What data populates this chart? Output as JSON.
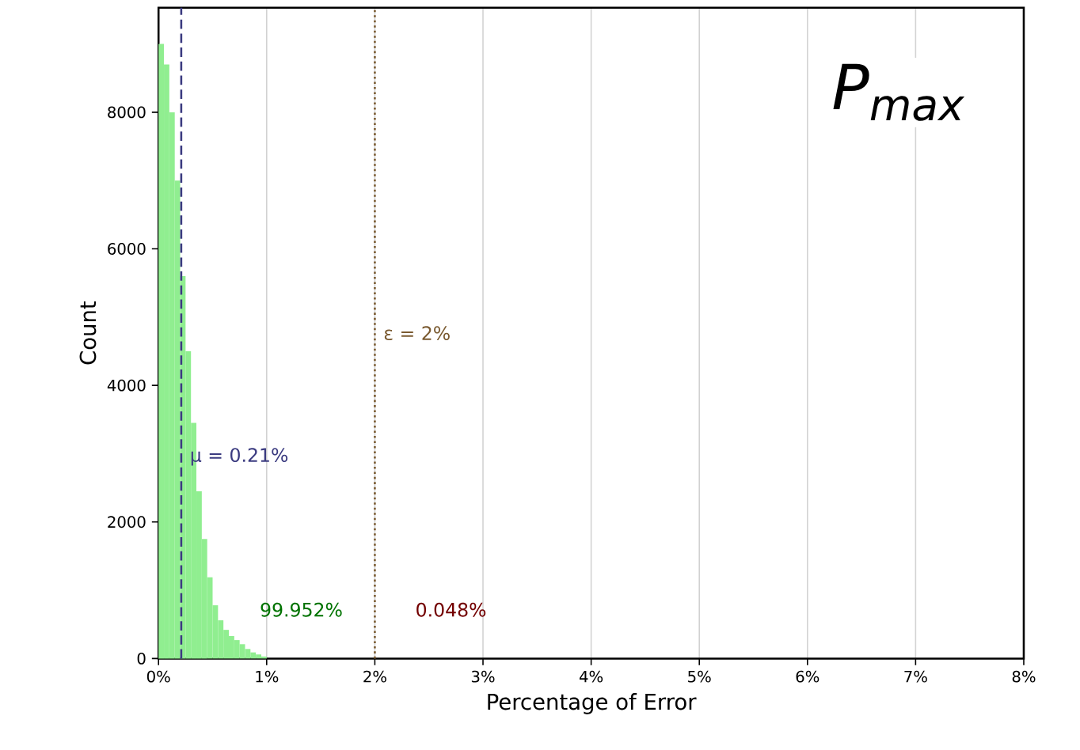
{
  "chart_data": {
    "type": "histogram",
    "title": "*P*$_{max}$",
    "xlabel": "Percentage of Error",
    "ylabel": "Count",
    "bins": [
      0,
      0.05,
      0.1,
      0.15,
      0.2,
      0.25,
      0.3,
      0.35,
      0.4,
      0.45,
      0.5,
      0.55,
      0.6,
      0.65,
      0.7,
      0.75,
      0.8,
      0.85,
      0.9,
      0.95,
      1.0
    ],
    "values": [
      9000,
      8700,
      8000,
      7000,
      5600,
      4500,
      3450,
      2450,
      1750,
      1190,
      780,
      560,
      420,
      330,
      270,
      210,
      140,
      90,
      60,
      30
    ],
    "color": "#90ee90",
    "xlim": [
      0,
      8
    ],
    "ylim": [
      0,
      9530
    ],
    "xticks": [
      {
        "value": 0,
        "label": "0%"
      },
      {
        "value": 1,
        "label": "1%"
      },
      {
        "value": 2,
        "label": "2%"
      },
      {
        "value": 3,
        "label": "3%"
      },
      {
        "value": 4,
        "label": "4%"
      },
      {
        "value": 5,
        "label": "5%"
      },
      {
        "value": 6,
        "label": "6%"
      },
      {
        "value": 7,
        "label": "7%"
      },
      {
        "value": 8,
        "label": "8%"
      }
    ],
    "yticks": [
      0,
      2000,
      4000,
      6000,
      8000
    ],
    "grid": "x",
    "ref_lines": [
      {
        "axis": "x",
        "value": 0.21,
        "label": "μ = 0.21%",
        "color": "#3b3b80",
        "line_style": "dashed"
      },
      {
        "axis": "x",
        "value": 2,
        "label": "ε = 2%",
        "color": "#7a5a30",
        "line_style": "dotted"
      }
    ],
    "annotations": [
      "99.952%",
      "0.048%"
    ]
  }
}
